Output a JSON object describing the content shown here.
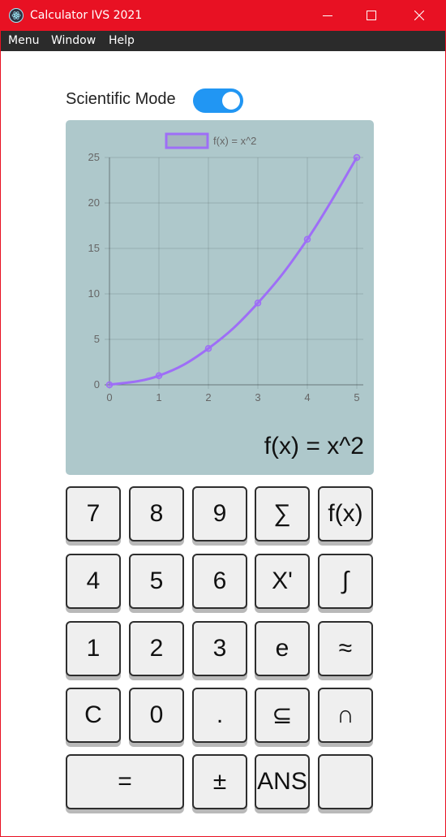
{
  "window": {
    "title": "Calculator IVS 2021",
    "accent": "#e81123"
  },
  "menubar": {
    "items": [
      "Menu",
      "Window",
      "Help"
    ]
  },
  "mode": {
    "label": "Scientific Mode",
    "toggle_on": true,
    "toggle_color": "#2196f3"
  },
  "display": {
    "expression": "f(x) = x^2"
  },
  "chart_data": {
    "type": "line",
    "x": [
      0,
      1,
      2,
      3,
      4,
      5
    ],
    "series": [
      {
        "name": "f(x) = x^2",
        "values": [
          0,
          1,
          4,
          9,
          16,
          25
        ],
        "color": "#9e6ef7"
      }
    ],
    "xlim": [
      0,
      5
    ],
    "ylim": [
      0,
      25
    ],
    "x_ticks": [
      "0",
      "1",
      "2",
      "3",
      "4",
      "5"
    ],
    "y_ticks": [
      "0",
      "5",
      "10",
      "15",
      "20",
      "25"
    ],
    "grid": true,
    "legend_position": "top-center",
    "background": "#aec8cb"
  },
  "keypad": {
    "rows": [
      [
        "7",
        "8",
        "9",
        "∑",
        "f(x)"
      ],
      [
        "4",
        "5",
        "6",
        "X'",
        "∫"
      ],
      [
        "1",
        "2",
        "3",
        "e",
        "≈"
      ],
      [
        "C",
        "0",
        ".",
        "⊆",
        "∩"
      ],
      [
        "=",
        "±",
        "ANS",
        ""
      ]
    ]
  }
}
